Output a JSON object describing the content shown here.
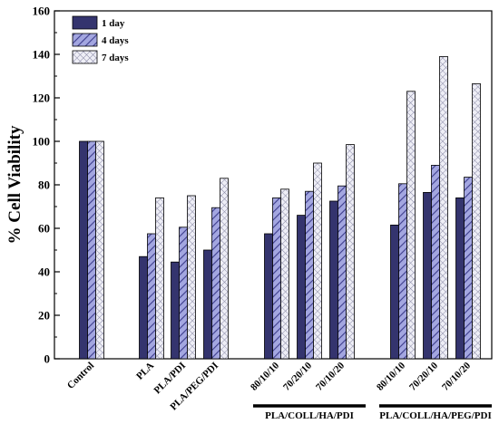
{
  "chart_data": {
    "type": "bar",
    "title": "",
    "xlabel": "",
    "ylabel": "% Cell Viability",
    "ylim": [
      0,
      160
    ],
    "yticks": [
      0,
      20,
      40,
      60,
      80,
      100,
      120,
      140,
      160
    ],
    "grid": false,
    "legend_position": "top-left",
    "categories": [
      "Control",
      "PLA",
      "PLA/PDI",
      "PLA/PEG/PDI",
      "80/10/10",
      "70/20/10",
      "70/10/20",
      "80/10/10",
      "70/20/10",
      "70/10/20"
    ],
    "category_groups": [
      {
        "label": "PLA/COLL/HA/PDI",
        "from": 4,
        "to": 6
      },
      {
        "label": "PLA/COLL/HA/PEG/PDI",
        "from": 7,
        "to": 9
      }
    ],
    "series": [
      {
        "name": "1 day",
        "values": [
          100,
          47,
          44.5,
          50,
          57.5,
          66,
          72.5,
          61.5,
          76.5,
          74
        ]
      },
      {
        "name": "4 days",
        "values": [
          100,
          57.5,
          60.5,
          69.5,
          74,
          77,
          79.5,
          80.5,
          89,
          83.5
        ]
      },
      {
        "name": "7 days",
        "values": [
          100,
          74,
          75,
          83,
          78,
          90,
          98.5,
          123,
          139,
          126.5
        ]
      }
    ],
    "colors": {
      "day1": "#34346e",
      "day4_fill": "#a3a6e0",
      "day4_hatch": "#3c3c8c",
      "day7_fill": "#e4e4f0",
      "day7_hatch": "#8a8aa6"
    }
  }
}
